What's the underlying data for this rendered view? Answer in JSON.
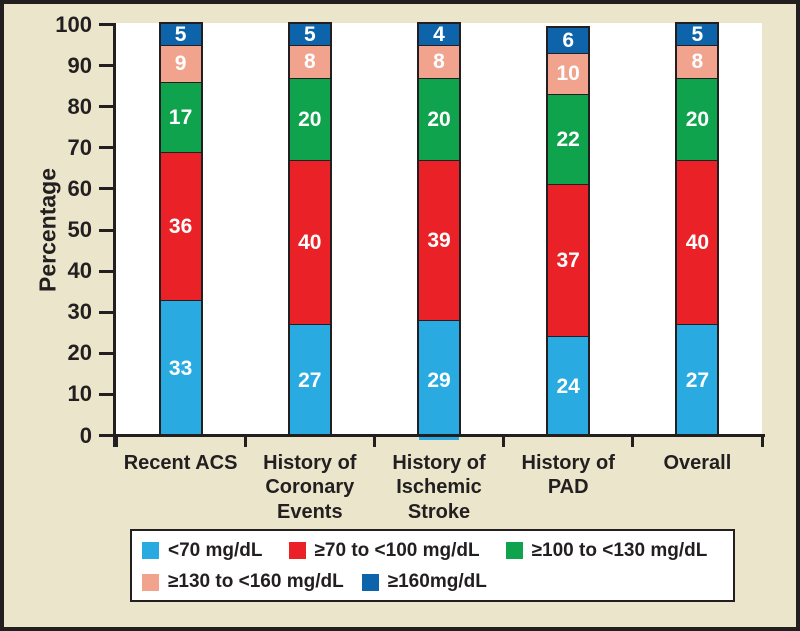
{
  "figure": {
    "background_color": "#ebe6cb",
    "frame_color": "#231f20",
    "plot_background": "#ffffff"
  },
  "chart_data": {
    "type": "bar",
    "stacked": true,
    "title": "",
    "xlabel": "",
    "ylabel": "Percentage",
    "ylim": [
      0,
      100
    ],
    "yticks": [
      0,
      10,
      20,
      30,
      40,
      50,
      60,
      70,
      80,
      90,
      100
    ],
    "grid": false,
    "legend_position": "bottom",
    "categories": [
      "Recent ACS",
      "History of\nCoronary\nEvents",
      "History of\nIschemic\nStroke",
      "History of\nPAD",
      "Overall"
    ],
    "series": [
      {
        "name": "<70 mg/dL",
        "color": "#29abe2",
        "values": [
          33,
          27,
          29,
          24,
          27
        ]
      },
      {
        "name": "≥70 to <100 mg/dL",
        "color": "#ea2227",
        "values": [
          36,
          40,
          39,
          37,
          40
        ]
      },
      {
        "name": "≥100 to <130 mg/dL",
        "color": "#0fa34e",
        "values": [
          17,
          20,
          20,
          22,
          20
        ]
      },
      {
        "name": "≥130 to <160 mg/dL",
        "color": "#f2a38e",
        "values": [
          9,
          8,
          8,
          10,
          8
        ]
      },
      {
        "name": "≥160mg/dL",
        "color": "#0e64ab",
        "values": [
          5,
          5,
          4,
          6,
          5
        ]
      }
    ],
    "bar_totals": [
      100,
      100,
      100,
      99,
      100
    ],
    "legend_rows": [
      [
        0,
        1,
        2
      ],
      [
        3,
        4
      ]
    ]
  }
}
